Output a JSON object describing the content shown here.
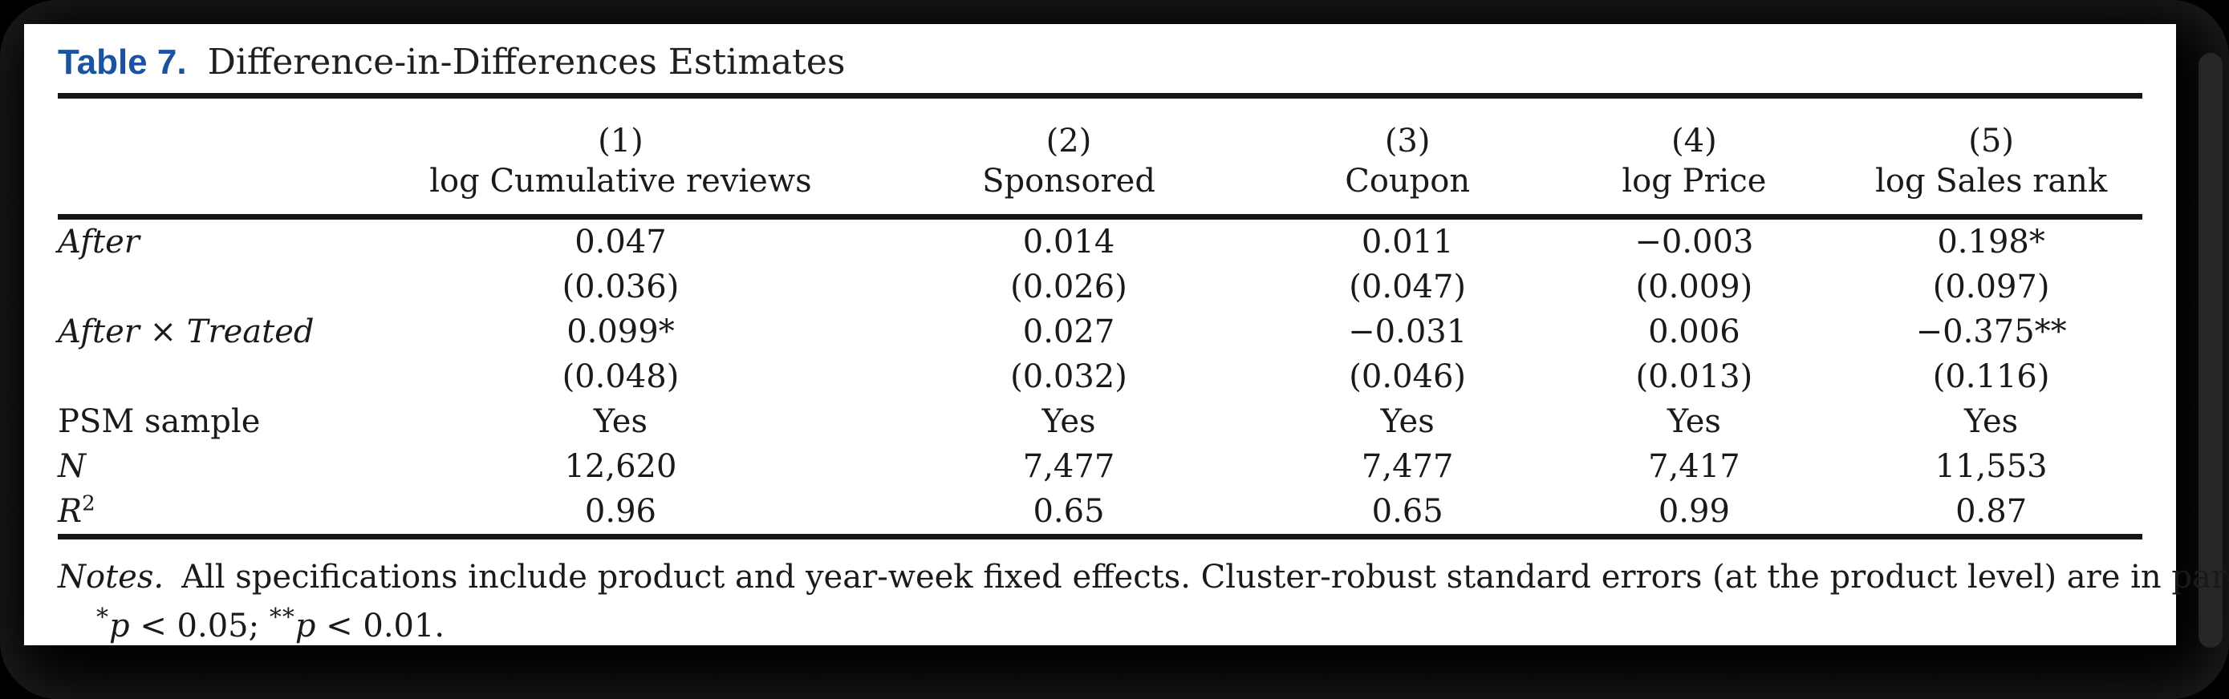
{
  "colors": {
    "title_accent": "#1c52a2",
    "text": "#1a1a1a",
    "rule": "#161616",
    "page_background": "#ffffff",
    "frame_background": "#000000"
  },
  "title": {
    "label": "Table 7.",
    "caption": "Difference-in-Differences Estimates"
  },
  "table": {
    "columns": [
      {
        "number": "(1)",
        "name": "log Cumulative reviews"
      },
      {
        "number": "(2)",
        "name": "Sponsored"
      },
      {
        "number": "(3)",
        "name": "Coupon"
      },
      {
        "number": "(4)",
        "name": "log Price"
      },
      {
        "number": "(5)",
        "name": "log Sales rank"
      }
    ],
    "rows": [
      {
        "label": "After",
        "label_style": "italic",
        "values": [
          "0.047",
          "0.014",
          "0.011",
          "−0.003",
          "0.198*"
        ]
      },
      {
        "label": "",
        "label_style": "roman",
        "values": [
          "(0.036)",
          "(0.026)",
          "(0.047)",
          "(0.009)",
          "(0.097)"
        ]
      },
      {
        "label": "After × Treated",
        "label_style": "italic",
        "values": [
          "0.099*",
          "0.027",
          "−0.031",
          "0.006",
          "−0.375**"
        ]
      },
      {
        "label": "",
        "label_style": "roman",
        "values": [
          "(0.048)",
          "(0.032)",
          "(0.046)",
          "(0.013)",
          "(0.116)"
        ]
      },
      {
        "label": "PSM sample",
        "label_style": "roman",
        "values": [
          "Yes",
          "Yes",
          "Yes",
          "Yes",
          "Yes"
        ]
      },
      {
        "label": "N",
        "label_style": "italic",
        "values": [
          "12,620",
          "7,477",
          "7,477",
          "7,417",
          "11,553"
        ]
      },
      {
        "label": "R",
        "label_sup": "2",
        "label_style": "italic",
        "values": [
          "0.96",
          "0.65",
          "0.65",
          "0.99",
          "0.87"
        ]
      }
    ]
  },
  "notes": {
    "label": "Notes.",
    "body": "All specifications include product and year-week fixed effects. Cluster-robust standard errors (at the product level) are in parentheses.",
    "significance": [
      {
        "stars": "*",
        "var": "p",
        "rest": " < 0.05; "
      },
      {
        "stars": "**",
        "var": "p",
        "rest": " < 0.01."
      }
    ]
  }
}
